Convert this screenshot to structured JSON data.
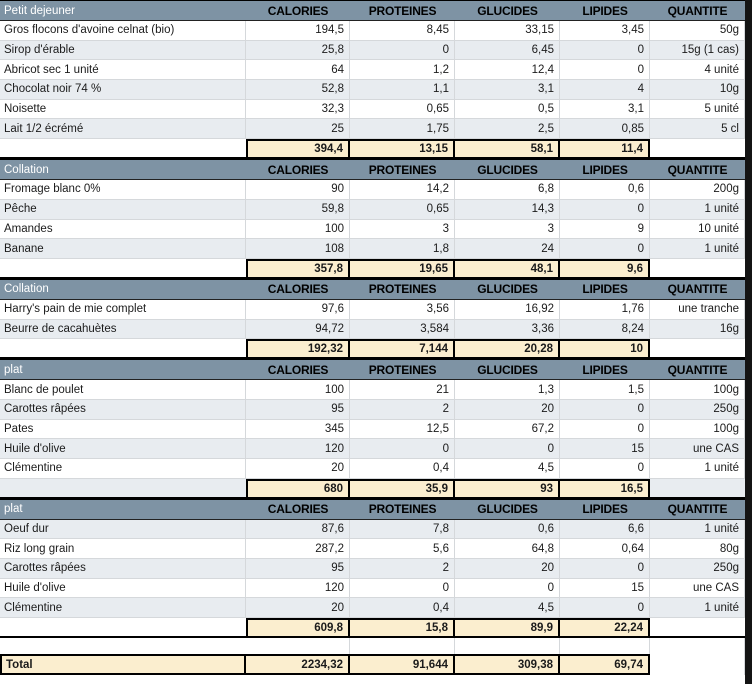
{
  "table": {
    "columns": [
      "CALORIES",
      "PROTEINES",
      "GLUCIDES",
      "LIPIDES",
      "QUANTITE"
    ],
    "sections": [
      {
        "title": "Petit dejeuner",
        "rows": [
          [
            "Gros flocons d'avoine celnat (bio)",
            "194,5",
            "8,45",
            "33,15",
            "3,45",
            "50g"
          ],
          [
            "Sirop d'érable",
            "25,8",
            "0",
            "6,45",
            "0",
            "15g (1 cas)"
          ],
          [
            "Abricot sec 1 unité",
            "64",
            "1,2",
            "12,4",
            "0",
            "4 unité"
          ],
          [
            "Chocolat noir 74 %",
            "52,8",
            "1,1",
            "3,1",
            "4",
            "10g"
          ],
          [
            "Noisette",
            "32,3",
            "0,65",
            "0,5",
            "3,1",
            "5 unité"
          ],
          [
            "Lait 1/2 écrémé",
            "25",
            "1,75",
            "2,5",
            "0,85",
            "5 cl"
          ]
        ],
        "subtotal": [
          "394,4",
          "13,15",
          "58,1",
          "11,4"
        ]
      },
      {
        "title": "Collation",
        "rows": [
          [
            "Fromage blanc 0%",
            "90",
            "14,2",
            "6,8",
            "0,6",
            "200g"
          ],
          [
            "Pêche",
            "59,8",
            "0,65",
            "14,3",
            "0",
            "1 unité"
          ],
          [
            "Amandes",
            "100",
            "3",
            "3",
            "9",
            "10 unité"
          ],
          [
            "Banane",
            "108",
            "1,8",
            "24",
            "0",
            "1 unité"
          ]
        ],
        "subtotal": [
          "357,8",
          "19,65",
          "48,1",
          "9,6"
        ]
      },
      {
        "title": "Collation",
        "rows": [
          [
            "Harry's pain de mie  complet",
            "97,6",
            "3,56",
            "16,92",
            "1,76",
            "une tranche"
          ],
          [
            "Beurre de cacahuètes",
            "94,72",
            "3,584",
            "3,36",
            "8,24",
            "16g"
          ]
        ],
        "subtotal": [
          "192,32",
          "7,144",
          "20,28",
          "10"
        ]
      },
      {
        "title": "plat",
        "rows": [
          [
            "Blanc de poulet",
            "100",
            "21",
            "1,3",
            "1,5",
            "100g"
          ],
          [
            "Carottes râpées",
            "95",
            "2",
            "20",
            "0",
            "250g"
          ],
          [
            "Pates",
            "345",
            "12,5",
            "67,2",
            "0",
            "100g"
          ],
          [
            "Huile d'olive",
            "120",
            "0",
            "0",
            "15",
            "une CAS"
          ],
          [
            "Clémentine",
            "20",
            "0,4",
            "4,5",
            "0",
            "1 unité"
          ]
        ],
        "subtotal": [
          "680",
          "35,9",
          "93",
          "16,5"
        ]
      },
      {
        "title": "plat",
        "rows": [
          [
            "Oeuf dur",
            "87,6",
            "7,8",
            "0,6",
            "6,6",
            "1 unité"
          ],
          [
            "Riz long grain",
            "287,2",
            "5,6",
            "64,8",
            "0,64",
            "80g"
          ],
          [
            "Carottes râpées",
            "95",
            "2",
            "20",
            "0",
            "250g"
          ],
          [
            "Huile d'olive",
            "120",
            "0",
            "0",
            "15",
            "une CAS"
          ],
          [
            "Clémentine",
            "20",
            "0,4",
            "4,5",
            "0",
            "1 unité"
          ]
        ],
        "subtotal": [
          "609,8",
          "15,8",
          "89,9",
          "22,24"
        ]
      }
    ],
    "total": {
      "label": "Total",
      "values": [
        "2234,32",
        "91,644",
        "309,38",
        "69,74"
      ]
    }
  },
  "colors": {
    "header_band": "#7e93a4",
    "banded_row": "#e8ecf0",
    "subtotal_fill": "#fbeecf",
    "grid_line": "#d5d8db",
    "border": "#000000",
    "right_edge": "#141414"
  }
}
